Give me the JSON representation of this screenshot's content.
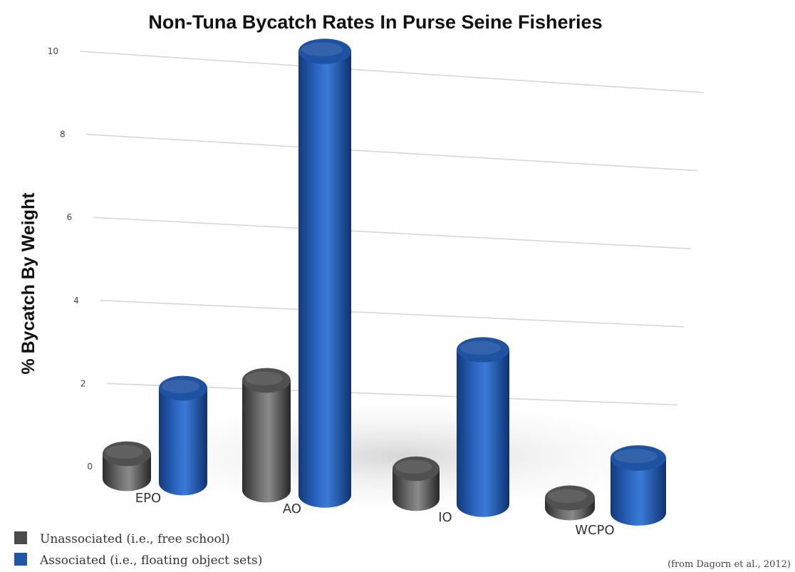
{
  "chart_data": {
    "type": "bar",
    "title": "Non-Tuna Bycatch Rates In Purse Seine Fisheries",
    "xlabel": "",
    "ylabel": "% Bycatch By Weight",
    "ylim": [
      0,
      10
    ],
    "yticks": [
      "0",
      "2",
      "4",
      "6",
      "8",
      "10"
    ],
    "categories": [
      "EPO",
      "AO",
      "IO",
      "WCPO"
    ],
    "series": [
      {
        "name": "Unassociated (i.e., free school)",
        "color": "#4a4a4a",
        "values": [
          0.5,
          2.2,
          0.6,
          0.2
        ]
      },
      {
        "name": "Associated (i.e., floating object sets)",
        "color": "#1f56a8",
        "values": [
          1.9,
          8.9,
          3.1,
          1.1
        ]
      }
    ],
    "grid": true,
    "legend_position": "bottom-left",
    "source_note": "(from Dagorn et al., 2012)"
  }
}
